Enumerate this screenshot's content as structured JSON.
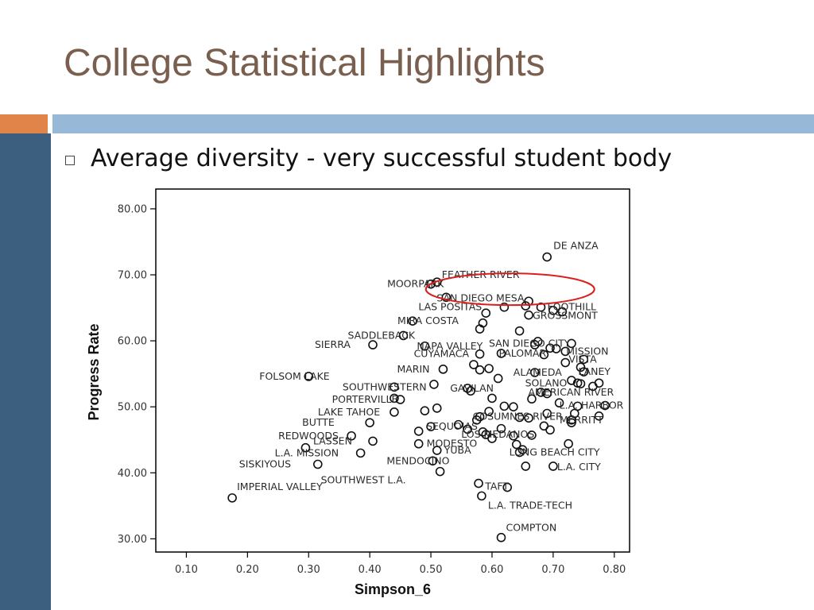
{
  "slide": {
    "title": "College Statistical Highlights",
    "bullet": "Average diversity - very successful student body",
    "colors": {
      "title": "#7a5e4e",
      "sidebar": "#3d5f7f",
      "accent_orange": "#e0844a",
      "accent_blue": "#97b8d6",
      "highlight_ellipse": "#d9201e"
    }
  },
  "chart_data": {
    "type": "scatter",
    "xlabel": "Simpson_6",
    "ylabel": "Progress Rate",
    "xlim": [
      0.05,
      0.825
    ],
    "ylim": [
      28,
      83
    ],
    "xticks": [
      "0.10",
      "0.20",
      "0.30",
      "0.40",
      "0.50",
      "0.60",
      "0.70",
      "0.80"
    ],
    "yticks": [
      "30.00",
      "40.00",
      "50.00",
      "60.00",
      "70.00",
      "80.00"
    ],
    "grid": false,
    "highlight": "FEATHER RIVER",
    "points": [
      {
        "x": 0.69,
        "y": 72.7,
        "label": "DE ANZA"
      },
      {
        "x": 0.51,
        "y": 68.9,
        "label": "FEATHER RIVER"
      },
      {
        "x": 0.5,
        "y": 68.6,
        "label": "MOORPARK"
      },
      {
        "x": 0.525,
        "y": 66.6,
        "label": "SAN DIEGO MESA"
      },
      {
        "x": 0.62,
        "y": 65.1,
        "label": "LAS POSITAS"
      },
      {
        "x": 0.68,
        "y": 65.1,
        "label": "FOOTHILL"
      },
      {
        "x": 0.47,
        "y": 63.0,
        "label": "MIRA COSTA"
      },
      {
        "x": 0.66,
        "y": 63.9,
        "label": "GROSSMONT"
      },
      {
        "x": 0.455,
        "y": 60.8,
        "label": "SADDLEBACK"
      },
      {
        "x": 0.405,
        "y": 59.4,
        "label": "SIERRA"
      },
      {
        "x": 0.49,
        "y": 59.2,
        "label": "NAPA VALLEY"
      },
      {
        "x": 0.73,
        "y": 59.6,
        "label": "SAN DIEGO CITY"
      },
      {
        "x": 0.58,
        "y": 58.0,
        "label": "CUYAMACA"
      },
      {
        "x": 0.72,
        "y": 58.4,
        "label": "MISSION"
      },
      {
        "x": 0.615,
        "y": 58.1,
        "label": "PALOMAR"
      },
      {
        "x": 0.75,
        "y": 57.2,
        "label": "VISTA"
      },
      {
        "x": 0.52,
        "y": 55.7,
        "label": "MARIN"
      },
      {
        "x": 0.75,
        "y": 55.3,
        "label": "LANEY"
      },
      {
        "x": 0.67,
        "y": 55.2,
        "label": "ALAMEDA"
      },
      {
        "x": 0.3,
        "y": 54.6,
        "label": "FOLSOM LAKE"
      },
      {
        "x": 0.44,
        "y": 53.0,
        "label": "SOUTHWESTERN"
      },
      {
        "x": 0.74,
        "y": 53.6,
        "label": "SOLANO"
      },
      {
        "x": 0.56,
        "y": 52.8,
        "label": "GAVILAN"
      },
      {
        "x": 0.68,
        "y": 52.2,
        "label": "AMERICAN RIVER"
      },
      {
        "x": 0.45,
        "y": 51.1,
        "label": "PORTERVILLE"
      },
      {
        "x": 0.74,
        "y": 50.1,
        "label": "L.A. HARBOR"
      },
      {
        "x": 0.44,
        "y": 49.2,
        "label": "LAKE TAHOE"
      },
      {
        "x": 0.58,
        "y": 48.5,
        "label": "COSUMNES RIVER"
      },
      {
        "x": 0.73,
        "y": 48.0,
        "label": "MERRITT"
      },
      {
        "x": 0.4,
        "y": 47.6,
        "label": "BUTTE"
      },
      {
        "x": 0.5,
        "y": 47.0,
        "label": "SEQUOIAS"
      },
      {
        "x": 0.37,
        "y": 45.6,
        "label": "REDWOODS"
      },
      {
        "x": 0.59,
        "y": 45.8,
        "label": "LOS MEDANOS"
      },
      {
        "x": 0.405,
        "y": 44.8,
        "label": "LASSEN"
      },
      {
        "x": 0.48,
        "y": 44.4,
        "label": "MODESTO"
      },
      {
        "x": 0.385,
        "y": 43.0,
        "label": "L.A. MISSION"
      },
      {
        "x": 0.51,
        "y": 43.4,
        "label": "YUBA"
      },
      {
        "x": 0.645,
        "y": 43.1,
        "label": "LONG BEACH CITY"
      },
      {
        "x": 0.503,
        "y": 41.8,
        "label": "MENDOCINO"
      },
      {
        "x": 0.315,
        "y": 41.3,
        "label": "SISKIYOUS"
      },
      {
        "x": 0.7,
        "y": 41.0,
        "label": "L.A. CITY"
      },
      {
        "x": 0.515,
        "y": 40.2,
        "label": "SOUTHWEST L.A."
      },
      {
        "x": 0.175,
        "y": 36.2,
        "label": "IMPERIAL VALLEY"
      },
      {
        "x": 0.625,
        "y": 37.8,
        "label": "TAFT"
      },
      {
        "x": 0.583,
        "y": 36.5,
        "label": "L.A. TRADE-TECH"
      },
      {
        "x": 0.615,
        "y": 30.2,
        "label": "COMPTON"
      },
      {
        "x": 0.59,
        "y": 64.2,
        "label": ""
      },
      {
        "x": 0.585,
        "y": 62.7,
        "label": ""
      },
      {
        "x": 0.58,
        "y": 61.8,
        "label": ""
      },
      {
        "x": 0.645,
        "y": 61.5,
        "label": ""
      },
      {
        "x": 0.66,
        "y": 66.0,
        "label": ""
      },
      {
        "x": 0.655,
        "y": 65.3,
        "label": ""
      },
      {
        "x": 0.7,
        "y": 64.6,
        "label": ""
      },
      {
        "x": 0.715,
        "y": 64.4,
        "label": ""
      },
      {
        "x": 0.675,
        "y": 59.9,
        "label": ""
      },
      {
        "x": 0.67,
        "y": 59.4,
        "label": ""
      },
      {
        "x": 0.695,
        "y": 58.9,
        "label": ""
      },
      {
        "x": 0.705,
        "y": 58.8,
        "label": ""
      },
      {
        "x": 0.685,
        "y": 57.9,
        "label": ""
      },
      {
        "x": 0.72,
        "y": 56.7,
        "label": ""
      },
      {
        "x": 0.745,
        "y": 56.0,
        "label": ""
      },
      {
        "x": 0.57,
        "y": 56.4,
        "label": ""
      },
      {
        "x": 0.58,
        "y": 55.6,
        "label": ""
      },
      {
        "x": 0.595,
        "y": 55.8,
        "label": ""
      },
      {
        "x": 0.61,
        "y": 54.3,
        "label": ""
      },
      {
        "x": 0.73,
        "y": 54.0,
        "label": ""
      },
      {
        "x": 0.745,
        "y": 53.5,
        "label": ""
      },
      {
        "x": 0.765,
        "y": 53.1,
        "label": ""
      },
      {
        "x": 0.775,
        "y": 53.6,
        "label": ""
      },
      {
        "x": 0.505,
        "y": 53.4,
        "label": ""
      },
      {
        "x": 0.565,
        "y": 52.4,
        "label": ""
      },
      {
        "x": 0.6,
        "y": 51.3,
        "label": ""
      },
      {
        "x": 0.62,
        "y": 50.1,
        "label": ""
      },
      {
        "x": 0.635,
        "y": 50.0,
        "label": ""
      },
      {
        "x": 0.665,
        "y": 51.2,
        "label": ""
      },
      {
        "x": 0.69,
        "y": 52.0,
        "label": ""
      },
      {
        "x": 0.71,
        "y": 50.6,
        "label": ""
      },
      {
        "x": 0.785,
        "y": 50.2,
        "label": ""
      },
      {
        "x": 0.44,
        "y": 51.3,
        "label": ""
      },
      {
        "x": 0.49,
        "y": 49.4,
        "label": ""
      },
      {
        "x": 0.51,
        "y": 49.8,
        "label": ""
      },
      {
        "x": 0.575,
        "y": 48.0,
        "label": ""
      },
      {
        "x": 0.595,
        "y": 49.3,
        "label": ""
      },
      {
        "x": 0.645,
        "y": 48.4,
        "label": ""
      },
      {
        "x": 0.66,
        "y": 48.3,
        "label": ""
      },
      {
        "x": 0.69,
        "y": 49.0,
        "label": ""
      },
      {
        "x": 0.735,
        "y": 49.0,
        "label": ""
      },
      {
        "x": 0.775,
        "y": 48.6,
        "label": ""
      },
      {
        "x": 0.545,
        "y": 47.3,
        "label": ""
      },
      {
        "x": 0.56,
        "y": 46.6,
        "label": ""
      },
      {
        "x": 0.585,
        "y": 46.2,
        "label": ""
      },
      {
        "x": 0.615,
        "y": 46.7,
        "label": ""
      },
      {
        "x": 0.635,
        "y": 45.6,
        "label": ""
      },
      {
        "x": 0.665,
        "y": 45.7,
        "label": ""
      },
      {
        "x": 0.685,
        "y": 47.1,
        "label": ""
      },
      {
        "x": 0.695,
        "y": 46.5,
        "label": ""
      },
      {
        "x": 0.6,
        "y": 45.2,
        "label": ""
      },
      {
        "x": 0.48,
        "y": 46.3,
        "label": ""
      },
      {
        "x": 0.64,
        "y": 44.3,
        "label": ""
      },
      {
        "x": 0.65,
        "y": 43.5,
        "label": ""
      },
      {
        "x": 0.725,
        "y": 44.4,
        "label": ""
      },
      {
        "x": 0.73,
        "y": 47.6,
        "label": ""
      },
      {
        "x": 0.655,
        "y": 41.0,
        "label": ""
      },
      {
        "x": 0.578,
        "y": 38.4,
        "label": ""
      },
      {
        "x": 0.295,
        "y": 43.8,
        "label": ""
      }
    ]
  }
}
